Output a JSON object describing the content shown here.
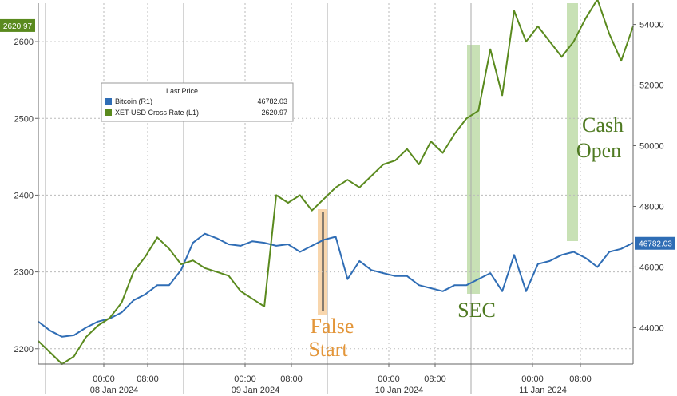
{
  "chart_data": {
    "type": "line",
    "legend": {
      "title": "Last Price",
      "placement": "top-left",
      "entries": [
        {
          "name": "Bitcoin  (R1)",
          "value": "46782.03",
          "color": "#2f6db5"
        },
        {
          "name": "XET-USD Cross Rate  (L1)",
          "value": "2620.97",
          "color": "#5a8a1e"
        }
      ]
    },
    "left_axis": {
      "ticks": [
        "2200",
        "2300",
        "2400",
        "2500",
        "2600"
      ],
      "range": [
        2180,
        2650
      ],
      "last_value_badge": "2620.97"
    },
    "right_axis": {
      "ticks": [
        "44000",
        "46000",
        "48000",
        "50000",
        "52000",
        "54000"
      ],
      "range": [
        42800,
        54700
      ],
      "last_value_badge": "46782.03"
    },
    "x_axis": {
      "time_ticks": [
        "00:00",
        "08:00",
        "00:00",
        "08:00",
        "00:00",
        "08:00",
        "00:00",
        "08:00"
      ],
      "day_labels": [
        "08 Jan 2024",
        "09 Jan 2024",
        "10 Jan 2024",
        "11 Jan 2024"
      ]
    },
    "grid": true,
    "series": [
      {
        "name": "Bitcoin  (R1)",
        "axis": "right",
        "color": "#2f6db5",
        "x": [
          0,
          2,
          4,
          6,
          8,
          10,
          12,
          14,
          16,
          18,
          20,
          22,
          24,
          26,
          28,
          30,
          32,
          34,
          36,
          38,
          40,
          42,
          44,
          46,
          48,
          50,
          52,
          54,
          56,
          58,
          60,
          62,
          64,
          66,
          68,
          70,
          72,
          74,
          76,
          78,
          80,
          82,
          84,
          86,
          88,
          90,
          92,
          94,
          96,
          98,
          100
        ],
        "y": [
          44200,
          43900,
          43700,
          43750,
          44000,
          44200,
          44300,
          44500,
          44900,
          45100,
          45400,
          45400,
          45900,
          46800,
          47100,
          46950,
          46750,
          46700,
          46850,
          46800,
          46700,
          46750,
          46500,
          46700,
          46900,
          47000,
          45600,
          46200,
          45900,
          45800,
          45700,
          45700,
          45400,
          45300,
          45200,
          45400,
          45400,
          45600,
          45800,
          45200,
          46400,
          45200,
          46100,
          46200,
          46400,
          46500,
          46300,
          46000,
          46500,
          46600,
          46800
        ]
      },
      {
        "name": "XET-USD Cross Rate  (L1)",
        "axis": "left",
        "color": "#5a8a1e",
        "x": [
          0,
          2,
          4,
          6,
          8,
          10,
          12,
          14,
          16,
          18,
          20,
          22,
          24,
          26,
          28,
          30,
          32,
          34,
          36,
          38,
          40,
          42,
          44,
          46,
          48,
          50,
          52,
          54,
          56,
          58,
          60,
          62,
          64,
          66,
          68,
          70,
          72,
          74,
          76,
          78,
          80,
          82,
          84,
          86,
          88,
          90,
          92,
          94,
          96,
          98,
          100
        ],
        "y": [
          2210,
          2195,
          2180,
          2190,
          2215,
          2230,
          2240,
          2260,
          2300,
          2320,
          2345,
          2330,
          2310,
          2315,
          2305,
          2300,
          2295,
          2275,
          2265,
          2255,
          2400,
          2390,
          2400,
          2380,
          2395,
          2410,
          2420,
          2410,
          2425,
          2440,
          2445,
          2460,
          2440,
          2470,
          2455,
          2480,
          2500,
          2510,
          2590,
          2530,
          2640,
          2600,
          2620,
          2600,
          2580,
          2600,
          2630,
          2655,
          2610,
          2575,
          2620
        ]
      }
    ],
    "annotations": [
      {
        "text": "False",
        "color": "#e3963a"
      },
      {
        "text": "Start",
        "color": "#e3963a"
      },
      {
        "text": "SEC",
        "color": "#4f7a22"
      },
      {
        "text": "Cash",
        "color": "#4f7a22"
      },
      {
        "text": "Open",
        "color": "#4f7a22"
      }
    ]
  }
}
